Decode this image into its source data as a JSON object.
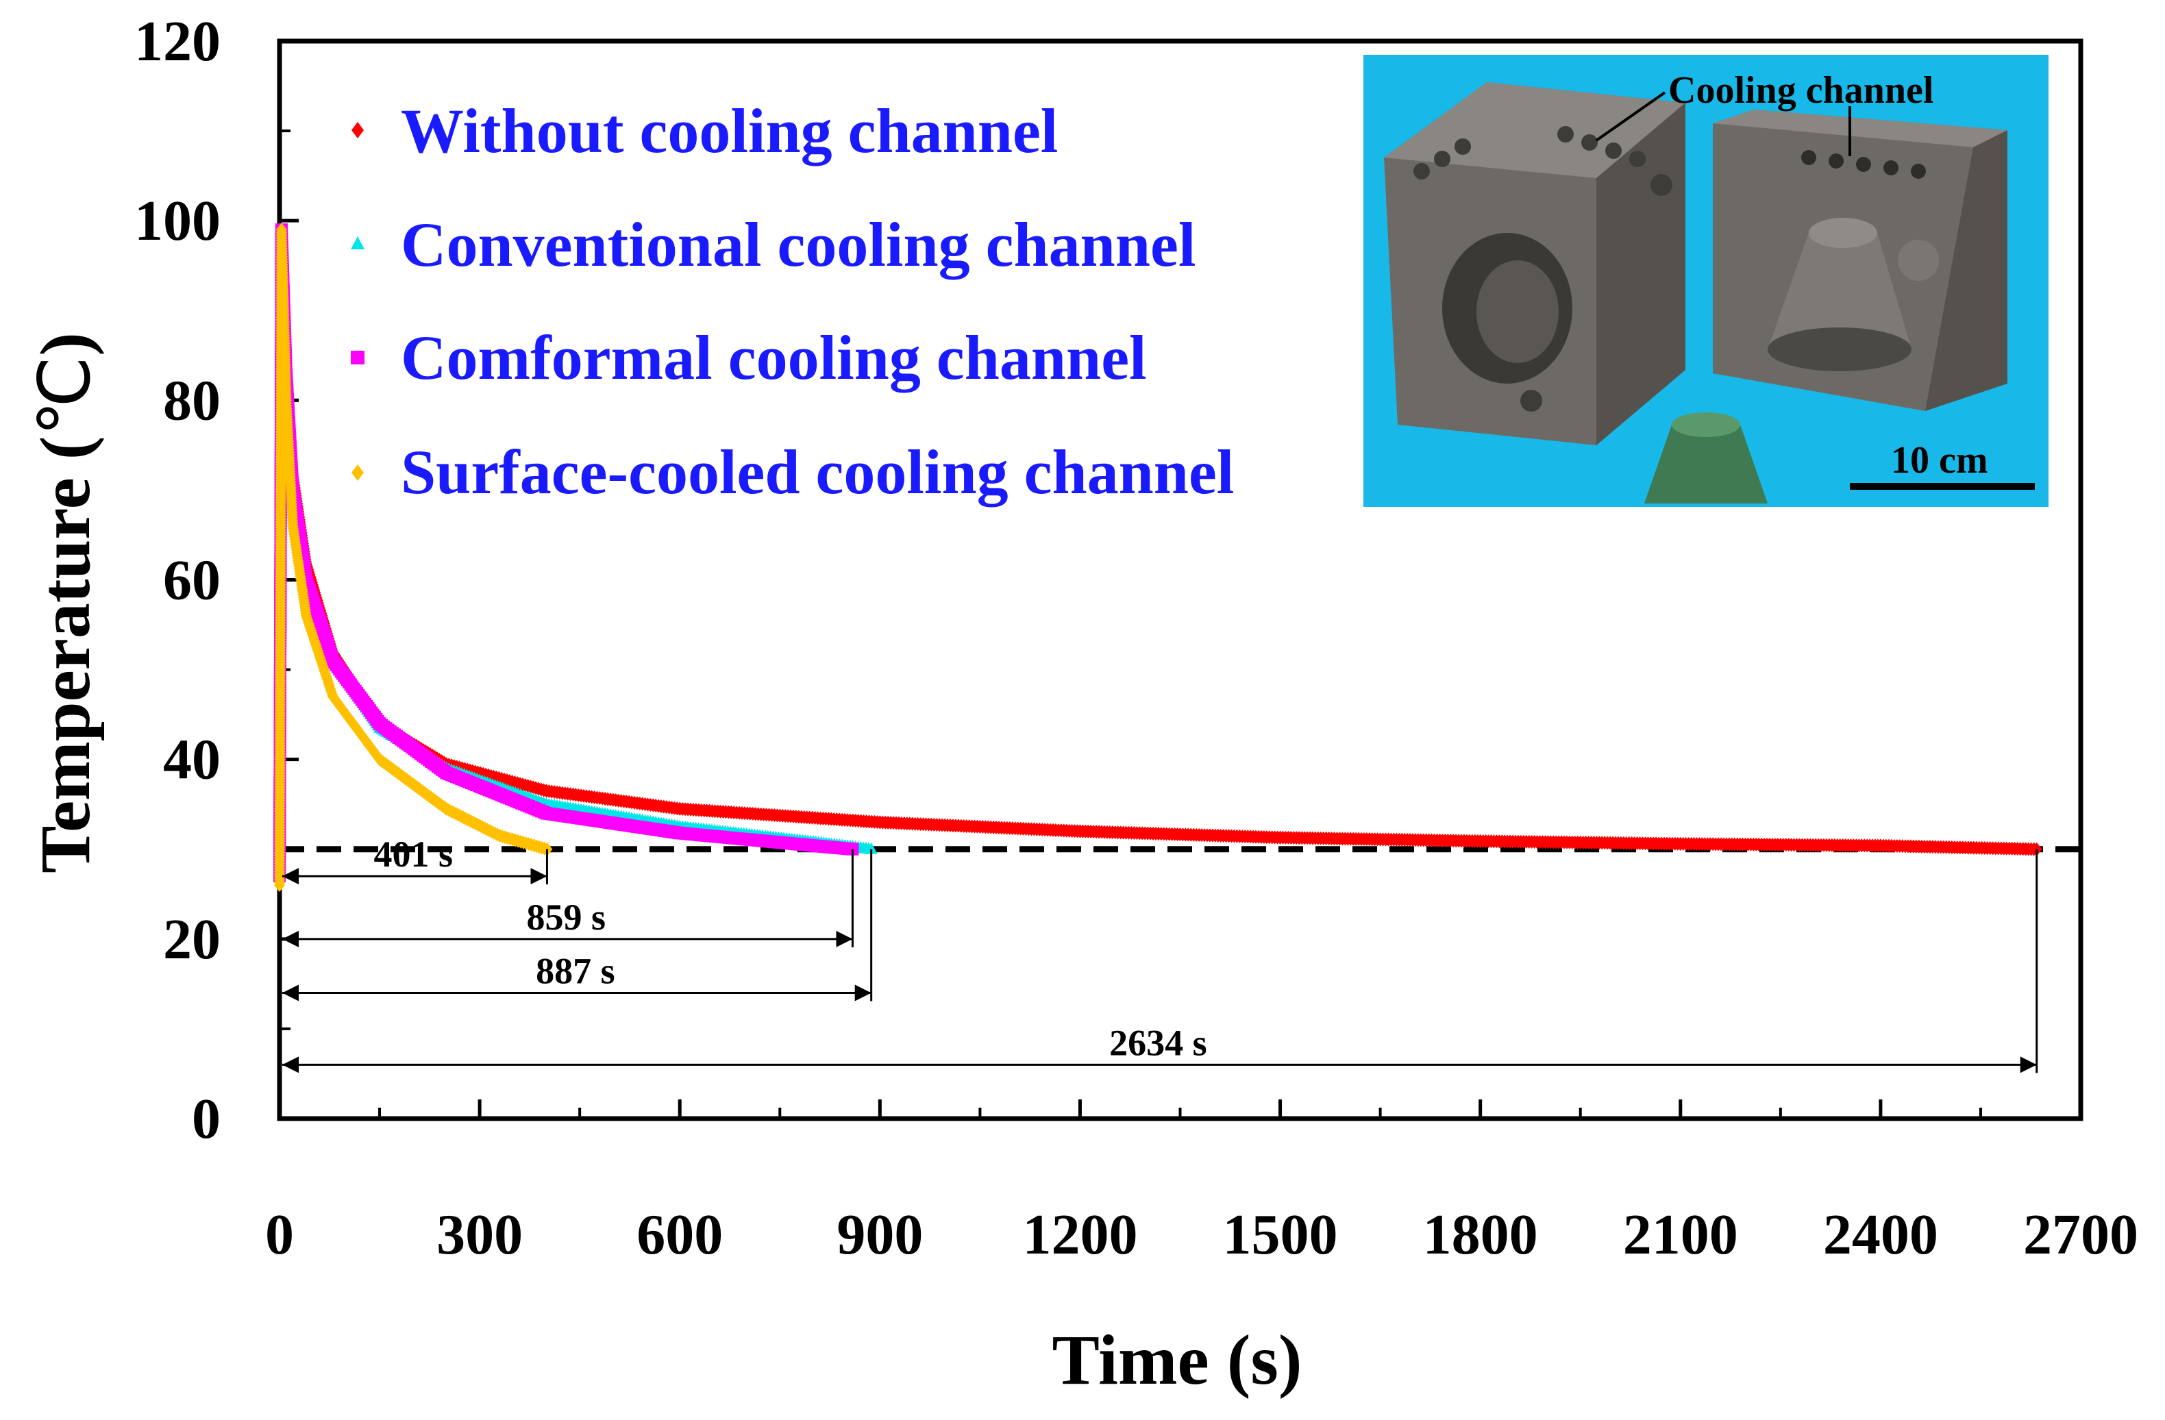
{
  "chart_data": {
    "type": "scatter",
    "xlabel": "Time (s)",
    "ylabel_main": "Temperature (",
    "ylabel_unit": "℃",
    "ylabel_close": ")",
    "xlim": [
      0,
      2700
    ],
    "ylim": [
      0,
      120
    ],
    "xticks": [
      "0",
      "300",
      "600",
      "900",
      "1200",
      "1500",
      "1800",
      "2100",
      "2400",
      "2700"
    ],
    "yticks": [
      "0",
      "20",
      "40",
      "60",
      "80",
      "100",
      "120"
    ],
    "legend_position": "top-left",
    "series": [
      {
        "name": "Without cooling channel",
        "color": "#ff0000",
        "marker": "diamond",
        "points": [
          [
            0,
            27
          ],
          [
            3,
            99
          ],
          [
            10,
            85
          ],
          [
            20,
            72
          ],
          [
            40,
            62
          ],
          [
            80,
            52
          ],
          [
            150,
            44
          ],
          [
            250,
            39.5
          ],
          [
            400,
            36.5
          ],
          [
            600,
            34.5
          ],
          [
            900,
            33
          ],
          [
            1200,
            32
          ],
          [
            1500,
            31.3
          ],
          [
            1800,
            30.9
          ],
          [
            2100,
            30.6
          ],
          [
            2400,
            30.4
          ],
          [
            2634,
            30
          ]
        ]
      },
      {
        "name": "Conventional cooling channel",
        "color": "#00e5e5",
        "marker": "triangle",
        "points": [
          [
            0,
            27
          ],
          [
            3,
            99
          ],
          [
            10,
            84
          ],
          [
            20,
            71
          ],
          [
            40,
            61
          ],
          [
            80,
            51
          ],
          [
            150,
            43.5
          ],
          [
            250,
            39
          ],
          [
            400,
            35
          ],
          [
            600,
            32.5
          ],
          [
            800,
            30.8
          ],
          [
            887,
            30
          ]
        ]
      },
      {
        "name": "Comformal cooling channel",
        "color": "#ff00ff",
        "marker": "square",
        "points": [
          [
            0,
            27
          ],
          [
            3,
            99
          ],
          [
            10,
            83
          ],
          [
            20,
            70
          ],
          [
            40,
            60
          ],
          [
            80,
            51
          ],
          [
            150,
            44
          ],
          [
            250,
            38.5
          ],
          [
            400,
            34
          ],
          [
            600,
            31.8
          ],
          [
            800,
            30.4
          ],
          [
            859,
            30
          ]
        ]
      },
      {
        "name": "Surface-cooled cooling channel",
        "color": "#ffc000",
        "marker": "diamond",
        "points": [
          [
            0,
            26
          ],
          [
            3,
            99
          ],
          [
            10,
            80
          ],
          [
            20,
            66
          ],
          [
            40,
            56
          ],
          [
            80,
            47
          ],
          [
            150,
            40
          ],
          [
            250,
            34.5
          ],
          [
            330,
            31.5
          ],
          [
            401,
            30
          ]
        ]
      }
    ],
    "reference_line": {
      "y": 30,
      "style": "dashed"
    },
    "annotations": [
      {
        "label": "401 s",
        "x_end": 401,
        "y": 27
      },
      {
        "label": "859 s",
        "x_end": 859,
        "y": 20
      },
      {
        "label": "887 s",
        "x_end": 887,
        "y": 14
      },
      {
        "label": "2634 s",
        "x_end": 2634,
        "y": 6
      }
    ],
    "inset": {
      "label_channel": "Cooling channel",
      "scale_label": "10 cm"
    }
  }
}
